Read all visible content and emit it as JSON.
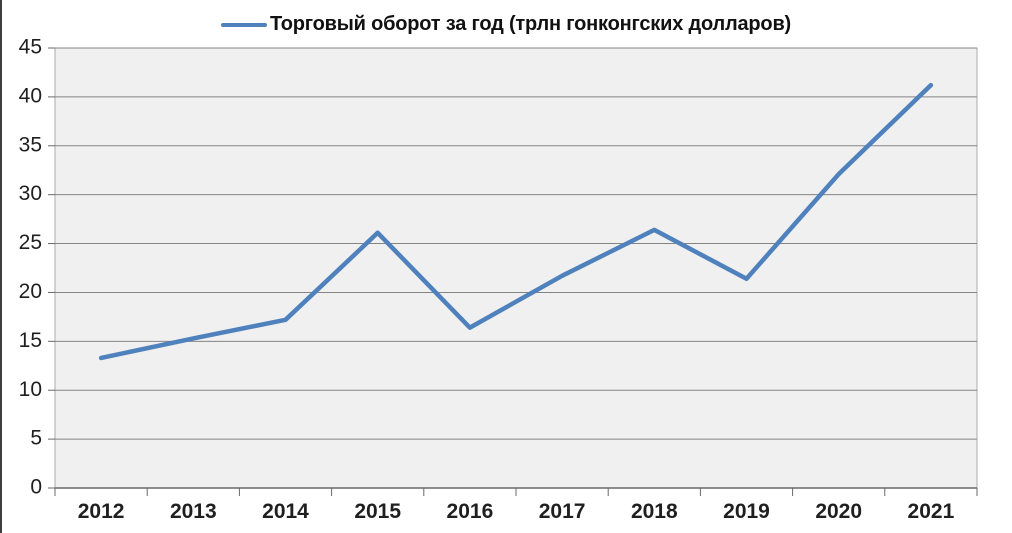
{
  "chart_data": {
    "type": "line",
    "series_name": "Торговый оборот за год (трлн гонконгских долларов)",
    "categories": [
      "2012",
      "2013",
      "2014",
      "2015",
      "2016",
      "2017",
      "2018",
      "2019",
      "2020",
      "2021"
    ],
    "values": [
      13.3,
      15.3,
      17.2,
      26.1,
      16.4,
      21.7,
      26.4,
      21.4,
      32.1,
      41.2
    ],
    "xlabel": "",
    "ylabel": "",
    "ylim": [
      0,
      45
    ],
    "y_ticks": [
      45,
      40,
      35,
      30,
      25,
      20,
      15,
      10,
      5,
      0
    ],
    "grid": true,
    "legend_position": "top",
    "colors": {
      "line": "#4f81bd",
      "plot_background": "#f0f0f0",
      "gridline": "#848484",
      "plot_border": "#ababab",
      "axis_line": "#686868",
      "tick": "#686868",
      "label_text": "#1f1f1f",
      "edge_line": "#3f3f3f"
    }
  }
}
